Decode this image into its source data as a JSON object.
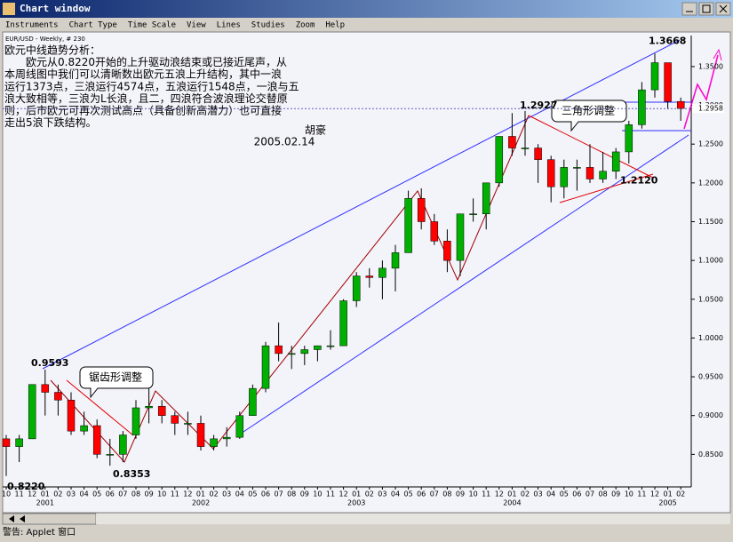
{
  "window": {
    "title": "Chart window"
  },
  "menu": [
    "Instruments",
    "Chart Type",
    "Time Scale",
    "View",
    "Lines",
    "Studies",
    "Zoom",
    "Help"
  ],
  "chart_data": {
    "type": "candlestick",
    "title": "EUR/USD - Weekly, # 230",
    "analysis": [
      "欧元中线趋势分析：",
      "　　欧元从0.8220开始的上升驱动浪结束或已接近尾声，从",
      "本周线图中我们可以清晰数出欧元五浪上升结构，其中一浪",
      "运行1373点，三浪运行4574点，五浪运行1548点，一浪与五",
      "浪大致相等，三浪为L长浪，且二，四浪符合波浪理论交替原",
      "则，后市欧元可再次测试高点（具备创新高潜力）也可直接",
      "走出5浪下跌结构。"
    ],
    "author": "胡豪",
    "date": "2005.02.14",
    "callouts": [
      "三角形调整",
      "锯齿形调整"
    ],
    "annotations": [
      {
        "value": 1.3668,
        "label": "1.3668"
      },
      {
        "value": 1.2927,
        "label": "1.2927"
      },
      {
        "value": 1.212,
        "label": "1.2120"
      },
      {
        "value": 0.9593,
        "label": "0.9593"
      },
      {
        "value": 0.822,
        "label": "0.8220"
      },
      {
        "value": 0.8353,
        "label": "0.8353"
      }
    ],
    "categories": [
      "10",
      "11",
      "12",
      "01",
      "02",
      "03",
      "04",
      "05",
      "06",
      "07",
      "08",
      "09",
      "10",
      "11",
      "12",
      "01",
      "02",
      "03",
      "04",
      "05",
      "06",
      "07",
      "08",
      "09",
      "10",
      "11",
      "12",
      "01",
      "02",
      "03",
      "04",
      "05",
      "06",
      "07",
      "08",
      "09",
      "10",
      "11",
      "12",
      "01",
      "02",
      "03",
      "04",
      "05",
      "06",
      "07",
      "08",
      "09",
      "10",
      "11",
      "12",
      "01",
      "02"
    ],
    "years": [
      "2001",
      "2002",
      "2003",
      "2004",
      "2005"
    ],
    "open": [
      0.87,
      0.86,
      0.87,
      0.94,
      0.93,
      0.92,
      0.88,
      0.887,
      0.85,
      0.85,
      0.875,
      0.91,
      0.912,
      0.9,
      0.89,
      0.89,
      0.86,
      0.87,
      0.872,
      0.9,
      0.935,
      0.99,
      0.98,
      0.98,
      0.985,
      0.99,
      0.99,
      1.048,
      1.08,
      1.078,
      1.09,
      1.11,
      1.18,
      1.15,
      1.125,
      1.1,
      1.16,
      1.16,
      1.2,
      1.26,
      1.245,
      1.245,
      1.23,
      1.195,
      1.22,
      1.22,
      1.205,
      1.215,
      1.24,
      1.275,
      1.32,
      1.355,
      1.305
    ],
    "high": [
      0.875,
      0.875,
      0.94,
      0.9593,
      0.94,
      0.93,
      0.905,
      0.895,
      0.87,
      0.88,
      0.92,
      0.935,
      0.92,
      0.905,
      0.905,
      0.9,
      0.875,
      0.885,
      0.905,
      0.94,
      0.995,
      1.02,
      0.99,
      0.99,
      0.99,
      1.01,
      1.05,
      1.085,
      1.09,
      1.1,
      1.12,
      1.19,
      1.193,
      1.16,
      1.14,
      1.16,
      1.18,
      1.2,
      1.26,
      1.29,
      1.2927,
      1.25,
      1.235,
      1.23,
      1.23,
      1.25,
      1.24,
      1.245,
      1.28,
      1.33,
      1.3668,
      1.355,
      1.31
    ],
    "low": [
      0.822,
      0.84,
      0.87,
      0.9,
      0.9,
      0.875,
      0.875,
      0.845,
      0.8353,
      0.84,
      0.87,
      0.89,
      0.89,
      0.875,
      0.875,
      0.855,
      0.855,
      0.86,
      0.87,
      0.9,
      0.93,
      0.97,
      0.96,
      0.965,
      0.97,
      0.985,
      0.99,
      1.04,
      1.065,
      1.05,
      1.06,
      1.11,
      1.14,
      1.12,
      1.085,
      1.08,
      1.15,
      1.14,
      1.195,
      1.235,
      1.235,
      1.2,
      1.175,
      1.18,
      1.19,
      1.2,
      1.2,
      1.205,
      1.225,
      1.27,
      1.31,
      1.295,
      1.28
    ],
    "close": [
      0.86,
      0.87,
      0.94,
      0.93,
      0.92,
      0.88,
      0.887,
      0.85,
      0.85,
      0.875,
      0.91,
      0.912,
      0.9,
      0.89,
      0.89,
      0.86,
      0.87,
      0.872,
      0.9,
      0.935,
      0.99,
      0.98,
      0.98,
      0.985,
      0.99,
      0.99,
      1.048,
      1.08,
      1.078,
      1.09,
      1.11,
      1.18,
      1.15,
      1.125,
      1.1,
      1.16,
      1.16,
      1.2,
      1.26,
      1.245,
      1.245,
      1.23,
      1.195,
      1.22,
      1.22,
      1.205,
      1.215,
      1.24,
      1.275,
      1.32,
      1.355,
      1.305,
      1.296
    ],
    "up_color": "#00b000",
    "down_color": "#ff0000",
    "ylim": [
      0.808,
      1.39
    ],
    "yticks": [
      {
        "value": 0.85,
        "label": "0.8500"
      },
      {
        "value": 0.9,
        "label": "0.9000"
      },
      {
        "value": 0.95,
        "label": "0.9500"
      },
      {
        "value": 1.0,
        "label": "1.0000"
      },
      {
        "value": 1.05,
        "label": "1.0500"
      },
      {
        "value": 1.1,
        "label": "1.1000"
      },
      {
        "value": 1.15,
        "label": "1.1500"
      },
      {
        "value": 1.2,
        "label": "1.2000"
      },
      {
        "value": 1.25,
        "label": "1.2500"
      },
      {
        "value": 1.3,
        "label": "1.3000"
      },
      {
        "value": 1.35,
        "label": "1.3500"
      }
    ],
    "last_price": 1.2958
  },
  "status": "警告: Applet 窗口"
}
